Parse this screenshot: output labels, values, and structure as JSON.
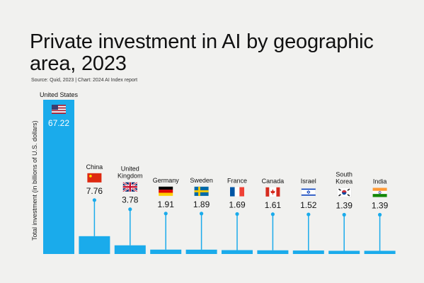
{
  "title": "Private investment in AI by geographic area, 2023",
  "source": "Source: Quid, 2023 | Chart: 2024 AI Index report",
  "colors": {
    "bar": "#1aabeb",
    "background": "#f1f1ef"
  },
  "chart_data": {
    "type": "bar",
    "title": "Private investment in AI by geographic area, 2023",
    "ylabel": "Total investment (in billions of U.S. dollars)",
    "xlabel": "",
    "ylim": [
      0,
      67.22
    ],
    "grid": false,
    "legend": "none",
    "categories": [
      "United States",
      "China",
      "United Kingdom",
      "Germany",
      "Sweden",
      "France",
      "Canada",
      "Israel",
      "South Korea",
      "India"
    ],
    "values": [
      67.22,
      7.76,
      3.78,
      1.91,
      1.89,
      1.69,
      1.61,
      1.52,
      1.39,
      1.39
    ],
    "value_labels": [
      "67.22",
      "7.76",
      "3.78",
      "1.91",
      "1.89",
      "1.69",
      "1.61",
      "1.52",
      "1.39",
      "1.39"
    ],
    "flags": [
      "us-flag-icon",
      "china-flag-icon",
      "uk-flag-icon",
      "germany-flag-icon",
      "sweden-flag-icon",
      "france-flag-icon",
      "canada-flag-icon",
      "israel-flag-icon",
      "south-korea-flag-icon",
      "india-flag-icon"
    ]
  }
}
